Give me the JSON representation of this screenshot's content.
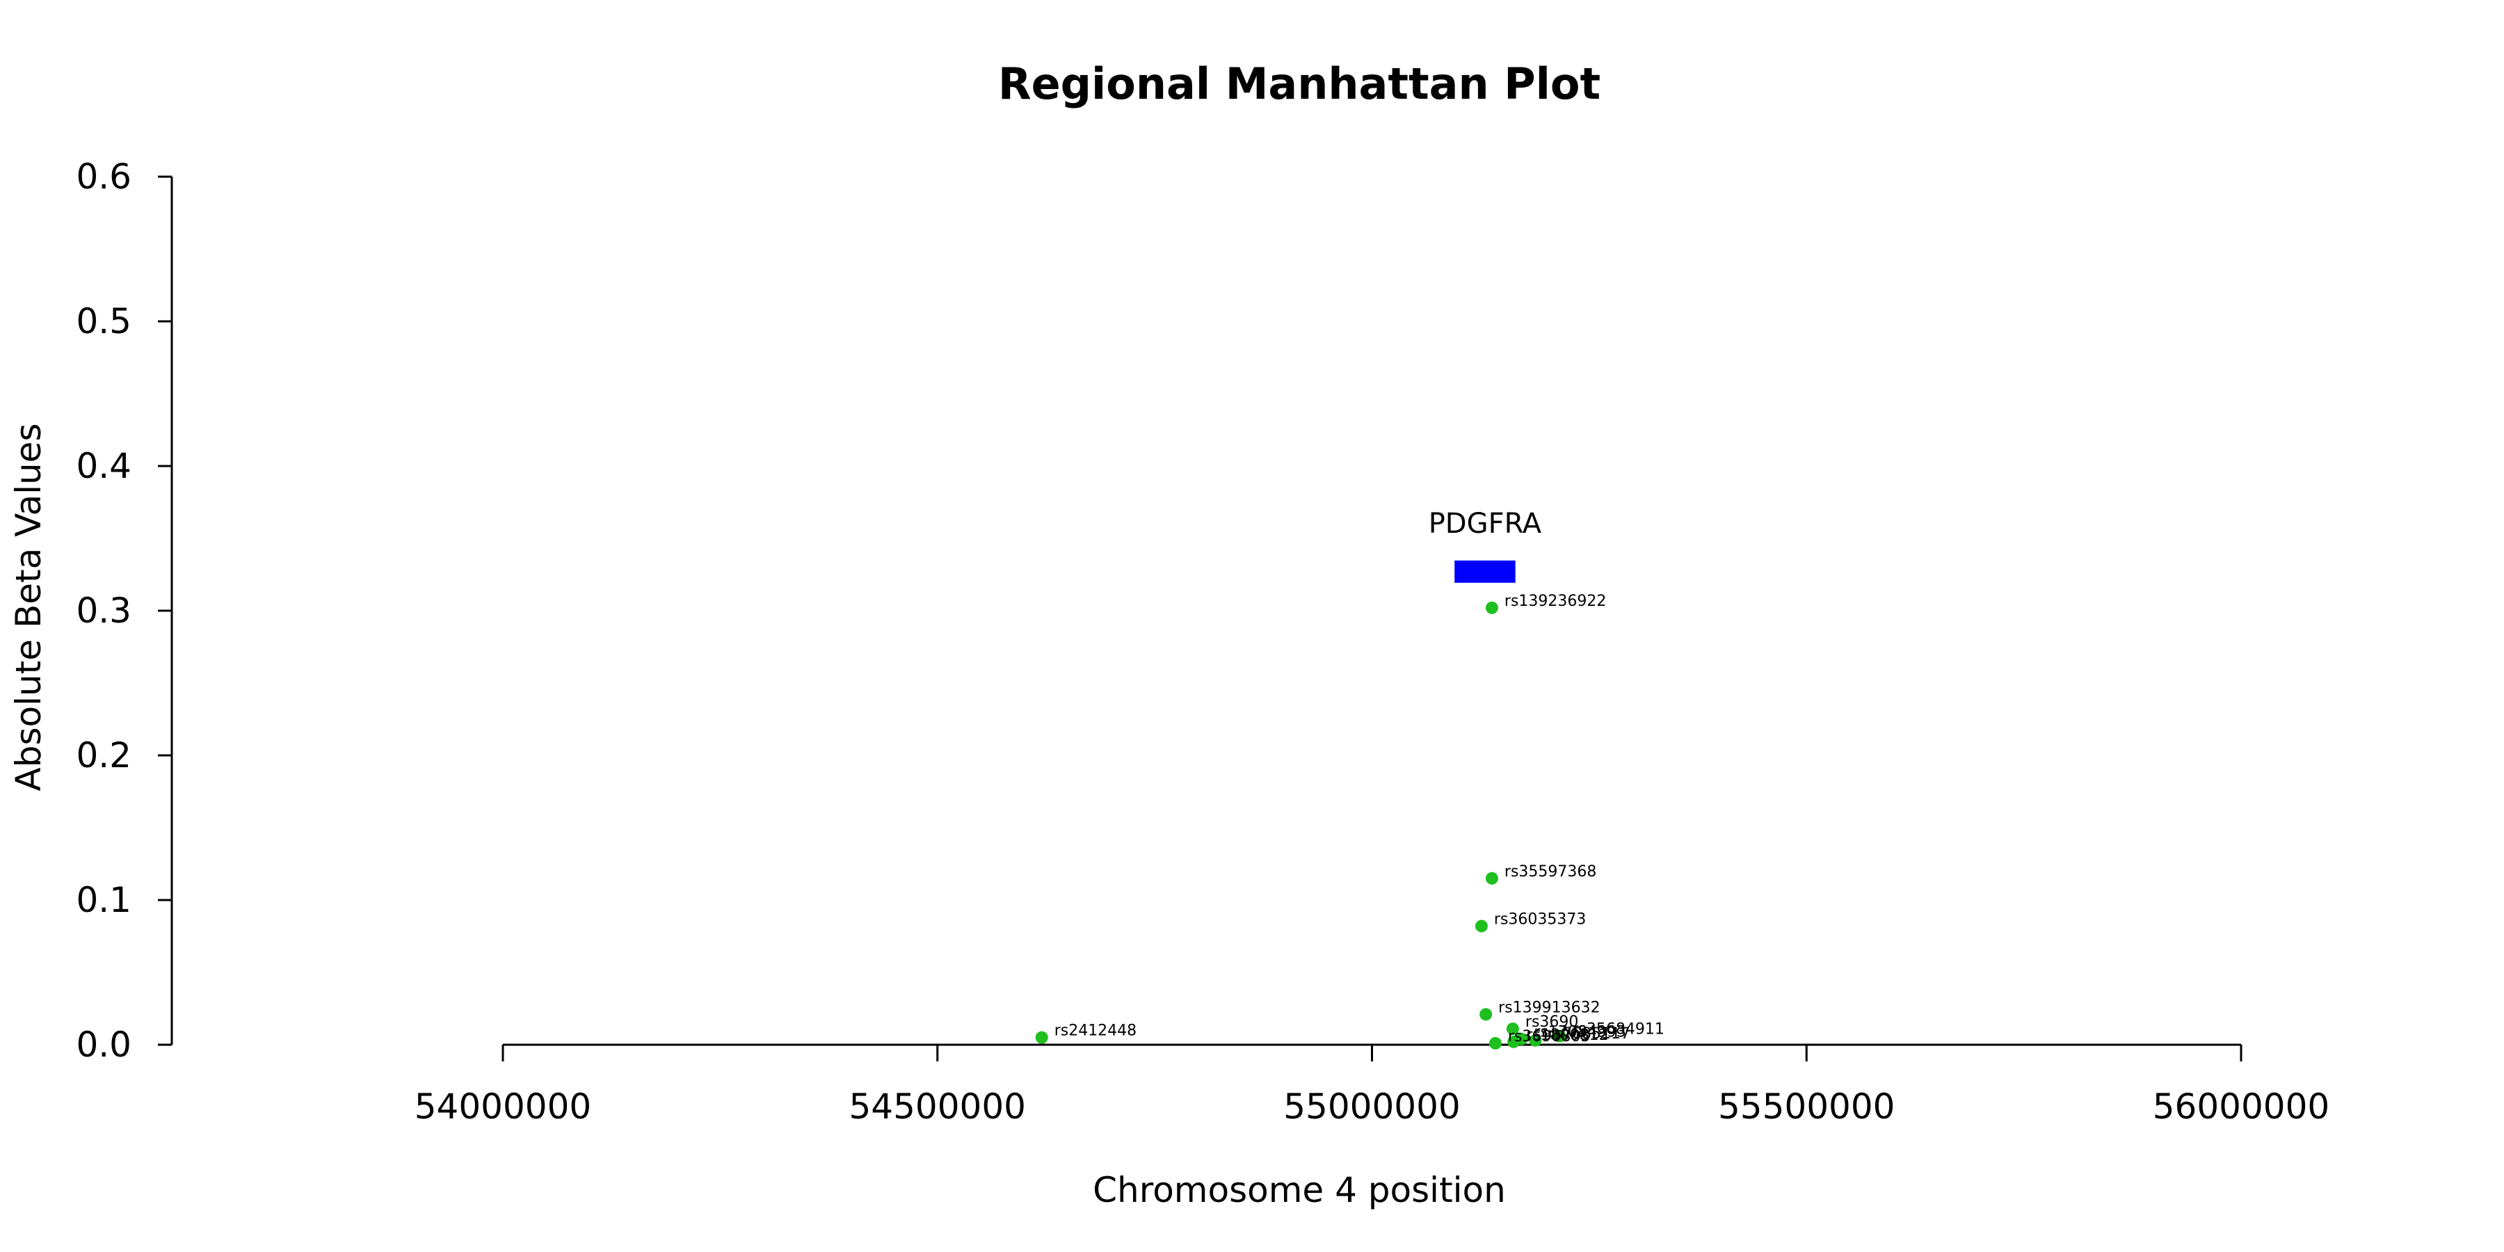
{
  "chart_data": {
    "type": "scatter",
    "title": "Regional Manhattan Plot",
    "xlabel": "Chromosome 4 position",
    "ylabel": "Absolute Beta Values",
    "xlim": [
      54000000,
      56000000
    ],
    "ylim": [
      0,
      0.6
    ],
    "x_ticks": [
      "54000000",
      "54500000",
      "55000000",
      "55500000",
      "56000000"
    ],
    "y_ticks": [
      "0.0",
      "0.1",
      "0.2",
      "0.3",
      "0.4",
      "0.5",
      "0.6"
    ],
    "point_color": "#1fbf1f",
    "gene": {
      "name": "PDGFRA",
      "start": 55095000,
      "end": 55165000,
      "y": 0.327,
      "color": "#0000ff"
    },
    "points": [
      {
        "label": "rs2412448",
        "x": 54620000,
        "y": 0.005
      },
      {
        "label": "rs139236922",
        "x": 55138000,
        "y": 0.302
      },
      {
        "label": "rs35597368",
        "x": 55138000,
        "y": 0.115
      },
      {
        "label": "rs36035373",
        "x": 55126000,
        "y": 0.082
      },
      {
        "label": "rs139913632",
        "x": 55131000,
        "y": 0.021
      },
      {
        "label": "rs3690",
        "x": 55162000,
        "y": 0.011
      },
      {
        "label": "rs35684911",
        "x": 55216000,
        "y": 0.006
      },
      {
        "label": "rs17084993",
        "x": 55172000,
        "y": 0.004
      },
      {
        "label": "rs7685117",
        "x": 55188000,
        "y": 0.003
      },
      {
        "label": "rs1800812",
        "x": 55163000,
        "y": 0.002
      },
      {
        "label": "rs3690805",
        "x": 55142000,
        "y": 0.001
      }
    ]
  }
}
